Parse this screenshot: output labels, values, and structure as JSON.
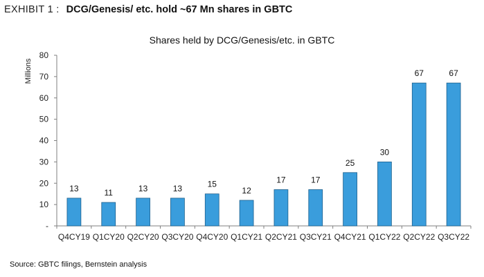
{
  "exhibit": {
    "label": "EXHIBIT 1 :",
    "title": "DCG/Genesis/ etc. hold ~67 Mn shares in GBTC"
  },
  "source": "Source: GBTC filings, Bernstein analysis",
  "colors": {
    "bar": "#3a9ddc",
    "bar_edge": "#1c5f8c",
    "axis": "#7f7f7f"
  },
  "chart_data": {
    "type": "bar",
    "title": "Shares held by DCG/Genesis/etc. in GBTC",
    "xlabel": "",
    "ylabel": "Millions",
    "ylim": [
      0,
      80
    ],
    "yticks": [
      "-",
      "10",
      "20",
      "30",
      "40",
      "50",
      "60",
      "70",
      "80"
    ],
    "categories": [
      "Q4CY19",
      "Q1CY20",
      "Q2CY20",
      "Q3CY20",
      "Q4CY20",
      "Q1CY21",
      "Q2CY21",
      "Q3CY21",
      "Q4CY21",
      "Q1CY22",
      "Q2CY22",
      "Q3CY22"
    ],
    "values": [
      13,
      11,
      13,
      13,
      15,
      12,
      17,
      17,
      25,
      30,
      67,
      67
    ],
    "data_labels": [
      "13",
      "11",
      "13",
      "13",
      "15",
      "12",
      "17",
      "17",
      "25",
      "30",
      "67",
      "67"
    ],
    "grid": false,
    "legend": "none"
  }
}
